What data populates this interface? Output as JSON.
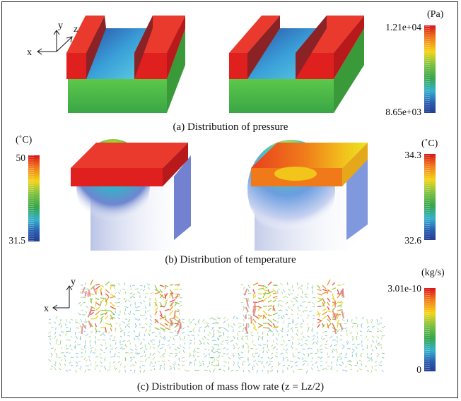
{
  "panels": {
    "pressure": {
      "caption": "(a) Distribution of pressure",
      "unit": "(Pa)",
      "max_label": "1.21e+04",
      "min_label": "8.65e+03"
    },
    "temperature": {
      "caption": "(b) Distribution of temperature",
      "left_bar": {
        "unit": "(˚C)",
        "max_label": "50",
        "min_label": "31.5"
      },
      "right_bar": {
        "unit": "(˚C)",
        "max_label": "34.3",
        "min_label": "32.6"
      }
    },
    "mass_flow": {
      "caption": "(c) Distribution of mass flow rate (z = Lz/2)",
      "unit": "(kg/s)",
      "max_label": "3.01e-10",
      "min_label": "0"
    }
  },
  "axes": {
    "top": {
      "x": "x",
      "y": "y",
      "z": "z"
    },
    "bottom": {
      "x": "x",
      "y": "y"
    }
  },
  "colors": {
    "colormap": [
      "#d9141b",
      "#f07a1a",
      "#f5d418",
      "#7cc242",
      "#38a64a",
      "#34b0d0",
      "#2a5fb0",
      "#243d93"
    ],
    "hot": "#e01f1f",
    "substrate": "#4fbf4f"
  }
}
